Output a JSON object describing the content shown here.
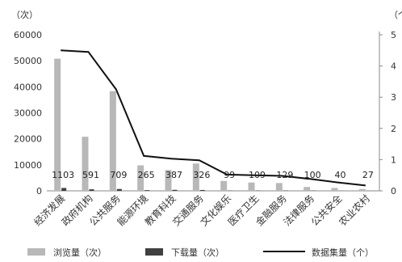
{
  "chart_data": {
    "type": "bar",
    "categories": [
      "经济发展",
      "政府机构",
      "公共服务",
      "能源环境",
      "教育科技",
      "交通服务",
      "文化娱乐",
      "医疗卫生",
      "金融服务",
      "法律服务",
      "公共安全",
      "农业农村"
    ],
    "series": [
      {
        "name": "浏览量（次）",
        "kind": "bar",
        "axis": "left",
        "color": "#b8b8b8",
        "values": [
          50800,
          20800,
          38300,
          9800,
          8000,
          10500,
          3800,
          3200,
          3000,
          1500,
          1100,
          700
        ]
      },
      {
        "name": "下载量（次）",
        "kind": "bar",
        "axis": "left",
        "color": "#404040",
        "values": [
          1103,
          591,
          709,
          265,
          387,
          326,
          99,
          109,
          129,
          100,
          40,
          27
        ]
      },
      {
        "name": "数据集量（个）",
        "kind": "line",
        "axis": "right",
        "color": "#111111",
        "values": [
          4.5,
          4.45,
          3.25,
          1.12,
          1.03,
          0.98,
          0.52,
          0.5,
          0.48,
          0.38,
          0.27,
          0.17
        ]
      }
    ],
    "data_labels": [
      "1103",
      "591",
      "709",
      "265",
      "387",
      "326",
      "99",
      "109",
      "129",
      "100",
      "40",
      "27"
    ],
    "left_axis": {
      "unit": "（次）",
      "ylim": [
        0,
        60000
      ],
      "ticks": [
        "0",
        "10000",
        "20000",
        "30000",
        "40000",
        "50000",
        "60000"
      ]
    },
    "right_axis": {
      "unit": "（个",
      "ylim": [
        0,
        5
      ],
      "ticks": [
        "0",
        "1",
        "2",
        "3",
        "4",
        "5"
      ]
    },
    "grid": false,
    "legend": {
      "position": "bottom",
      "labels": [
        "浏览量（次）",
        "下载量（次）",
        "数据集量（个）"
      ]
    }
  }
}
